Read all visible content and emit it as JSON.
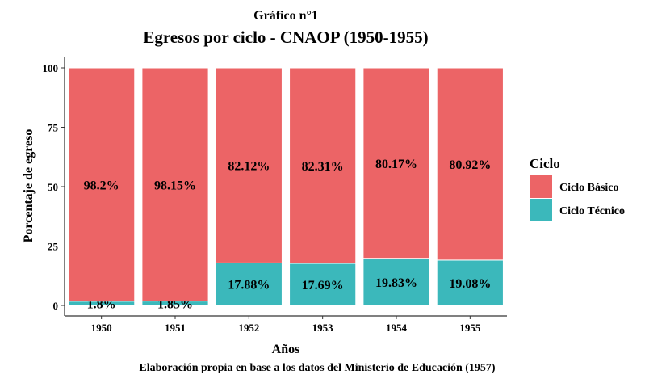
{
  "chart_data": {
    "type": "bar",
    "stacked": true,
    "title": "Egresos por ciclo - CNAOP (1950-1955)",
    "subtitle": "Gráfico n°1",
    "caption": "Elaboración propia en base a los datos del Ministerio de Educación (1957)",
    "xlabel": "Años",
    "ylabel": "Porcentaje de egreso",
    "categories": [
      "1950",
      "1951",
      "1952",
      "1953",
      "1954",
      "1955"
    ],
    "ylim": [
      0,
      100
    ],
    "yticks": [
      0,
      25,
      50,
      75,
      100
    ],
    "grid": false,
    "legend": {
      "title": "Ciclo",
      "position": "right"
    },
    "series": [
      {
        "name": "Ciclo Técnico",
        "color": "#3bb8bb",
        "values": [
          1.8,
          1.85,
          17.88,
          17.69,
          19.83,
          19.08
        ],
        "labels": [
          "1.8%",
          "1.85%",
          "17.88%",
          "17.69%",
          "19.83%",
          "19.08%"
        ]
      },
      {
        "name": "Ciclo Básico",
        "color": "#ec6466",
        "values": [
          98.2,
          98.15,
          82.12,
          82.31,
          80.17,
          80.92
        ],
        "labels": [
          "98.2%",
          "98.15%",
          "82.12%",
          "82.31%",
          "80.17%",
          "80.92%"
        ]
      }
    ]
  }
}
